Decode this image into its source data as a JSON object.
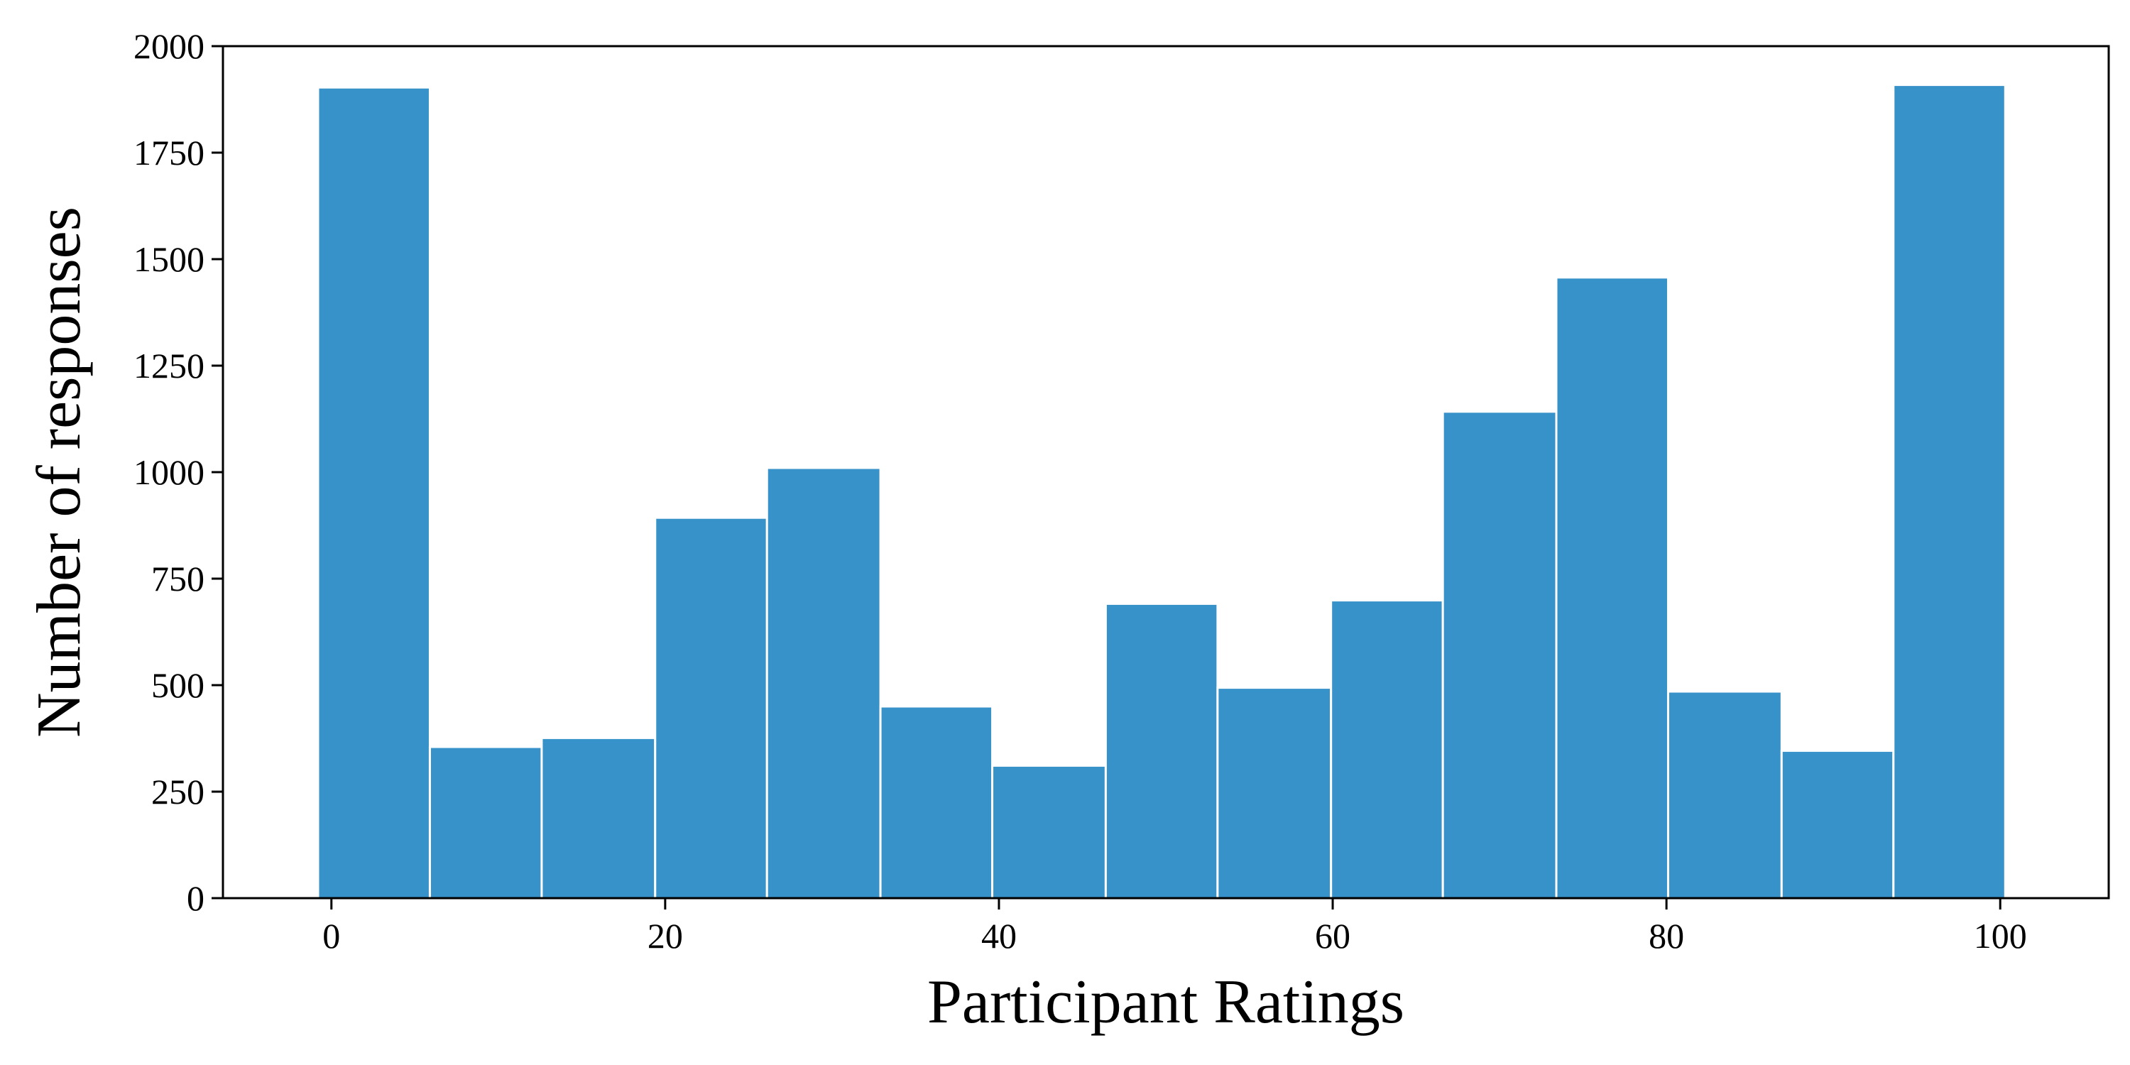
{
  "chart_data": {
    "type": "bar",
    "variant": "histogram",
    "title": "",
    "xlabel": "Participant Ratings",
    "ylabel": "Number of responses",
    "xlim": [
      -6.5,
      106.5
    ],
    "ylim": [
      0,
      2000
    ],
    "xticks": [
      0,
      20,
      40,
      60,
      80,
      100
    ],
    "yticks": [
      0,
      250,
      500,
      750,
      1000,
      1250,
      1500,
      1750,
      2000
    ],
    "bins": [
      {
        "x0": -0.8,
        "x1": 5.9,
        "value": 1903
      },
      {
        "x0": 5.9,
        "x1": 12.6,
        "value": 355
      },
      {
        "x0": 12.6,
        "x1": 19.4,
        "value": 376
      },
      {
        "x0": 19.4,
        "x1": 26.1,
        "value": 893
      },
      {
        "x0": 26.1,
        "x1": 32.9,
        "value": 1010
      },
      {
        "x0": 32.9,
        "x1": 39.6,
        "value": 450
      },
      {
        "x0": 39.6,
        "x1": 46.4,
        "value": 311
      },
      {
        "x0": 46.4,
        "x1": 53.1,
        "value": 691
      },
      {
        "x0": 53.1,
        "x1": 59.9,
        "value": 494
      },
      {
        "x0": 59.9,
        "x1": 66.6,
        "value": 699
      },
      {
        "x0": 66.6,
        "x1": 73.4,
        "value": 1142
      },
      {
        "x0": 73.4,
        "x1": 80.1,
        "value": 1457
      },
      {
        "x0": 80.1,
        "x1": 86.9,
        "value": 485
      },
      {
        "x0": 86.9,
        "x1": 93.6,
        "value": 346
      },
      {
        "x0": 93.6,
        "x1": 100.3,
        "value": 1909
      }
    ],
    "bar_color": "#3692C8",
    "edge_color": "#ffffff",
    "grid": false,
    "legend": "none"
  }
}
